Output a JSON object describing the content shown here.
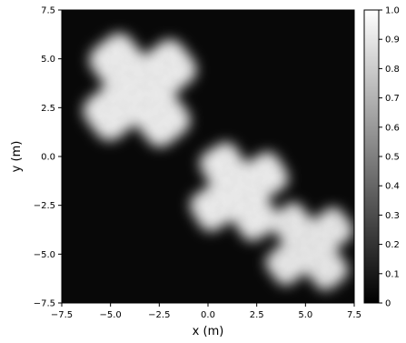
{
  "chart_data": {
    "type": "heatmap",
    "title": "",
    "xlabel": "x (m)",
    "ylabel": "y (m)",
    "xlim": [
      -7.5,
      7.5
    ],
    "ylim": [
      -7.5,
      7.5
    ],
    "x_ticks": [
      "−7.5",
      "−5.0",
      "−2.5",
      "0.0",
      "2.5",
      "5.0",
      "7.5"
    ],
    "y_ticks": [
      "−7.5",
      "−5.0",
      "−2.5",
      "0.0",
      "2.5",
      "5.0",
      "7.5"
    ],
    "x_tick_values": [
      -7.5,
      -5.0,
      -2.5,
      0.0,
      2.5,
      5.0,
      7.5
    ],
    "y_tick_values": [
      -7.5,
      -5.0,
      -2.5,
      0.0,
      2.5,
      5.0,
      7.5
    ],
    "colormap": "gray",
    "colorbar": {
      "range": [
        0,
        1.0
      ],
      "ticks": [
        "0",
        "0.1",
        "0.2",
        "0.3",
        "0.4",
        "0.5",
        "0.6",
        "0.7",
        "0.8",
        "0.9",
        "1.0"
      ],
      "tick_values": [
        0,
        0.1,
        0.2,
        0.3,
        0.4,
        0.5,
        0.6,
        0.7,
        0.8,
        0.9,
        1.0
      ]
    },
    "background_value": 0.03,
    "shapes": [
      {
        "kind": "cross",
        "center": [
          -3.5,
          3.4
        ],
        "arm_length": 3.1,
        "arm_width": 2.5,
        "rotation_deg": 38,
        "value": 0.92
      },
      {
        "kind": "cross",
        "center": [
          1.6,
          -1.8
        ],
        "arm_length": 2.6,
        "arm_width": 2.1,
        "rotation_deg": 32,
        "value": 0.92
      },
      {
        "kind": "cross",
        "center": [
          5.2,
          -4.6
        ],
        "arm_length": 2.4,
        "arm_width": 1.9,
        "rotation_deg": 38,
        "value": 0.9
      }
    ]
  }
}
